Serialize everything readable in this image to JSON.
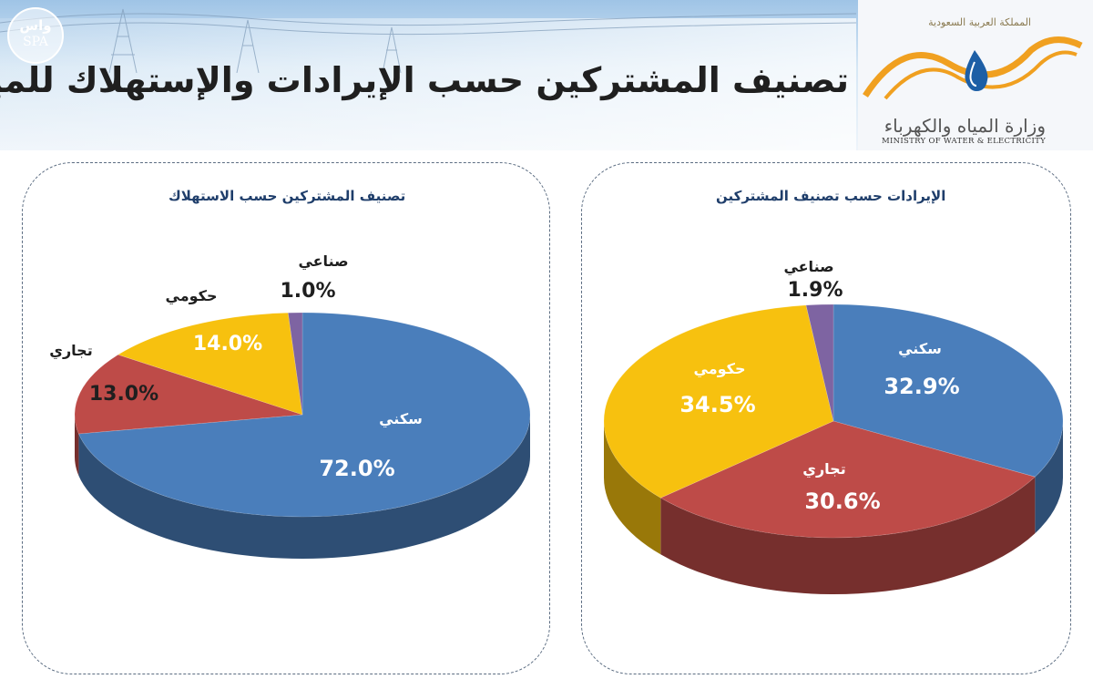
{
  "header": {
    "title": "تصنيف المشتركين حسب الإيرادات والإستهلاك للمياه",
    "spa_arabic": "واس",
    "spa_english": "SPA",
    "logo_kingdom": "المملكة العربية السعودية",
    "logo_ministry_ar": "وزارة المياه والكهرباء",
    "logo_ministry_en": "MINISTRY OF WATER & ELECTRICITY"
  },
  "colors": {
    "residential": "#4a7ebb",
    "commercial": "#be4b48",
    "government": "#f7c10f",
    "industrial": "#7e64a2"
  },
  "chart_data": [
    {
      "type": "pie",
      "title": "تصنيف المشتركين حسب الاستهلاك",
      "style": "3d",
      "slices": [
        {
          "label": "سكني",
          "value": 72.0,
          "value_label": "72.0%",
          "color": "#4a7ebb"
        },
        {
          "label": "تجاري",
          "value": 13.0,
          "value_label": "13.0%",
          "color": "#be4b48"
        },
        {
          "label": "حكومي",
          "value": 14.0,
          "value_label": "14.0%",
          "color": "#f7c10f"
        },
        {
          "label": "صناعي",
          "value": 1.0,
          "value_label": "1.0%",
          "color": "#7e64a2"
        }
      ]
    },
    {
      "type": "pie",
      "title": "الإيرادات حسب تصنيف المشتركين",
      "style": "3d",
      "slices": [
        {
          "label": "سكني",
          "value": 32.9,
          "value_label": "32.9%",
          "color": "#4a7ebb"
        },
        {
          "label": "تجاري",
          "value": 30.6,
          "value_label": "30.6%",
          "color": "#be4b48"
        },
        {
          "label": "حكومي",
          "value": 34.5,
          "value_label": "34.5%",
          "color": "#f7c10f"
        },
        {
          "label": "صناعي",
          "value": 1.9,
          "value_label": "1.9%",
          "color": "#7e64a2"
        }
      ]
    }
  ]
}
